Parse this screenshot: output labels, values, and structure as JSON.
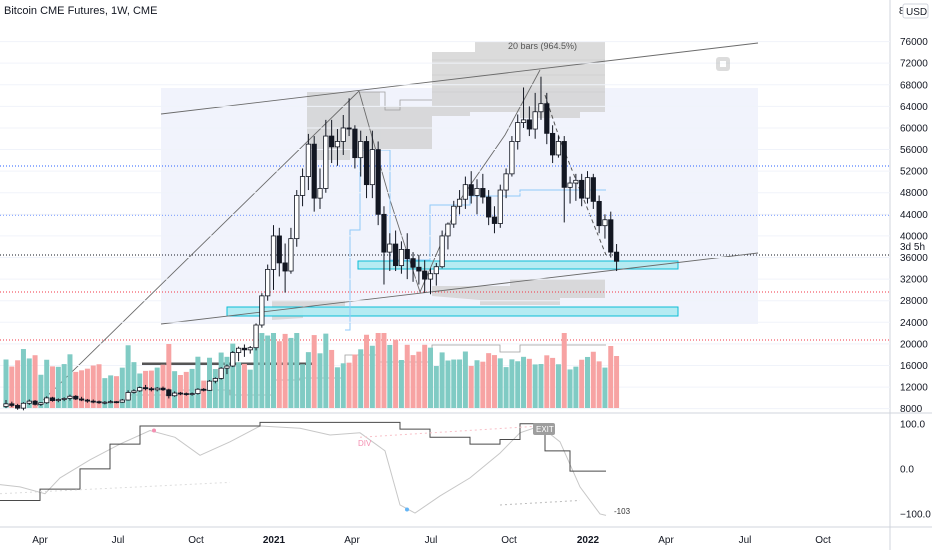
{
  "header": {
    "title": "Bitcoin CME Futures, 1W, CME",
    "currency": "USD",
    "currency_cut": "8"
  },
  "chart_data": {
    "type": "candlestick",
    "title": "Bitcoin CME Futures, 1W, CME",
    "y_ticks": [
      8000,
      12000,
      16000,
      20000,
      24000,
      28000,
      32000,
      36000,
      40000,
      44000,
      48000,
      52000,
      56000,
      60000,
      64000,
      68000,
      72000,
      76000
    ],
    "ylim": [
      7200,
      80000
    ],
    "x_tick_labels": [
      "Apr",
      "Jul",
      "Oct",
      "2021",
      "Apr",
      "Jul",
      "Oct",
      "2022",
      "Apr",
      "Jul",
      "Oct"
    ],
    "bold_x_labels": [
      "2021",
      "2022"
    ],
    "countdown_label": "3d 5h",
    "measure_label": "20 bars (964.5%)",
    "annotations": [
      "DIV",
      "EXIT"
    ],
    "oscillator": {
      "ylim": [
        -120,
        115
      ],
      "ticks": [
        100.0,
        0.0,
        -100.0
      ],
      "tick_labels": [
        "100.0",
        "0.0",
        "−100.0"
      ],
      "min_label": "-103"
    },
    "candles": [
      [
        8400,
        9600,
        8100,
        8900
      ],
      [
        8900,
        9300,
        8300,
        8600
      ],
      [
        8600,
        8900,
        7800,
        8100
      ],
      [
        8100,
        9200,
        7700,
        9000
      ],
      [
        9000,
        9700,
        8700,
        9400
      ],
      [
        9400,
        9600,
        8600,
        8800
      ],
      [
        8800,
        9200,
        8500,
        9100
      ],
      [
        9100,
        10300,
        8900,
        10000
      ],
      [
        10000,
        10200,
        9300,
        9500
      ],
      [
        9500,
        9900,
        9200,
        9700
      ],
      [
        9700,
        10100,
        9400,
        9900
      ],
      [
        9900,
        10600,
        9500,
        10300
      ],
      [
        10300,
        10500,
        9600,
        9800
      ],
      [
        9800,
        10200,
        9400,
        9600
      ],
      [
        9600,
        9800,
        9100,
        9400
      ],
      [
        9400,
        9700,
        9000,
        9300
      ],
      [
        9300,
        9500,
        8900,
        9100
      ],
      [
        9100,
        9400,
        8800,
        9200
      ],
      [
        9200,
        9600,
        9000,
        9300
      ],
      [
        9300,
        9400,
        9000,
        9200
      ],
      [
        9200,
        9800,
        9100,
        9600
      ],
      [
        9600,
        11400,
        9500,
        11000
      ],
      [
        11000,
        11600,
        10800,
        11300
      ],
      [
        11300,
        12100,
        11100,
        11900
      ],
      [
        11900,
        12400,
        11400,
        11700
      ],
      [
        11700,
        12000,
        11200,
        11500
      ],
      [
        11500,
        12000,
        11200,
        11800
      ],
      [
        11800,
        12100,
        11300,
        11500
      ],
      [
        11500,
        11700,
        9900,
        10400
      ],
      [
        10400,
        11200,
        10200,
        10900
      ],
      [
        10900,
        11100,
        10500,
        10800
      ],
      [
        10800,
        11000,
        10400,
        10700
      ],
      [
        10700,
        11000,
        10400,
        10800
      ],
      [
        10800,
        11800,
        10600,
        11600
      ],
      [
        11600,
        11800,
        11200,
        11400
      ],
      [
        11400,
        13300,
        11300,
        13100
      ],
      [
        13100,
        13800,
        12700,
        13600
      ],
      [
        13600,
        15700,
        13400,
        15500
      ],
      [
        15500,
        16200,
        14400,
        15900
      ],
      [
        15900,
        18700,
        15700,
        18400
      ],
      [
        18400,
        19500,
        16800,
        19200
      ],
      [
        19200,
        19900,
        17600,
        18900
      ],
      [
        18900,
        19600,
        18200,
        19300
      ],
      [
        19300,
        23800,
        18800,
        23500
      ],
      [
        23500,
        29400,
        23000,
        28900
      ],
      [
        28900,
        34700,
        28000,
        33800
      ],
      [
        33800,
        42000,
        30000,
        40000
      ],
      [
        40000,
        41500,
        32500,
        35000
      ],
      [
        35000,
        38600,
        29500,
        33500
      ],
      [
        33500,
        41500,
        33000,
        39500
      ],
      [
        39500,
        48500,
        38000,
        47500
      ],
      [
        47500,
        52500,
        45500,
        51000
      ],
      [
        51000,
        58900,
        48500,
        57000
      ],
      [
        57000,
        58500,
        44500,
        47000
      ],
      [
        47000,
        52500,
        45000,
        48800
      ],
      [
        48800,
        61500,
        48000,
        58500
      ],
      [
        58500,
        61500,
        53500,
        56500
      ],
      [
        56500,
        59800,
        53000,
        57500
      ],
      [
        57500,
        62400,
        55000,
        60000
      ],
      [
        60000,
        65500,
        58500,
        59800
      ],
      [
        59800,
        60500,
        52500,
        54500
      ],
      [
        54500,
        59500,
        51000,
        57500
      ],
      [
        57500,
        58500,
        47000,
        49500
      ],
      [
        49500,
        59500,
        47000,
        56000
      ],
      [
        56000,
        57500,
        42000,
        44000
      ],
      [
        44000,
        45500,
        31000,
        37000
      ],
      [
        37000,
        40500,
        33500,
        38500
      ],
      [
        38500,
        41000,
        33500,
        34500
      ],
      [
        34500,
        39000,
        33000,
        37500
      ],
      [
        37500,
        40500,
        32000,
        35800
      ],
      [
        35800,
        37000,
        31500,
        34200
      ],
      [
        34200,
        36500,
        31000,
        33500
      ],
      [
        33500,
        35500,
        29500,
        32000
      ],
      [
        32000,
        34000,
        29200,
        33000
      ],
      [
        33000,
        35000,
        30800,
        34300
      ],
      [
        34300,
        41000,
        34000,
        40000
      ],
      [
        40000,
        42500,
        37500,
        42200
      ],
      [
        42200,
        46500,
        41500,
        45500
      ],
      [
        45500,
        48500,
        44000,
        46800
      ],
      [
        46800,
        51000,
        45000,
        49500
      ],
      [
        49500,
        52000,
        46000,
        47500
      ],
      [
        47500,
        50500,
        44000,
        48800
      ],
      [
        48800,
        51500,
        46000,
        47200
      ],
      [
        47200,
        48500,
        42000,
        43500
      ],
      [
        43500,
        45500,
        40500,
        42300
      ],
      [
        42300,
        49500,
        41500,
        48500
      ],
      [
        48500,
        52500,
        47000,
        51500
      ],
      [
        51500,
        58500,
        51000,
        57500
      ],
      [
        57500,
        62500,
        56000,
        61000
      ],
      [
        61000,
        67500,
        60000,
        61500
      ],
      [
        61500,
        64000,
        58500,
        59800
      ],
      [
        59800,
        66500,
        58000,
        63000
      ],
      [
        63000,
        69500,
        61500,
        64500
      ],
      [
        64500,
        66500,
        57000,
        59000
      ],
      [
        59000,
        60500,
        53500,
        55000
      ],
      [
        55000,
        58500,
        54500,
        57500
      ],
      [
        57500,
        58500,
        42500,
        49000
      ],
      [
        49000,
        51000,
        46000,
        49800
      ],
      [
        49800,
        51500,
        46500,
        50300
      ],
      [
        50300,
        51500,
        45500,
        47000
      ],
      [
        47000,
        52000,
        46000,
        50800
      ],
      [
        50800,
        51500,
        45000,
        46400
      ],
      [
        46400,
        47500,
        40500,
        41900
      ],
      [
        41900,
        44000,
        39500,
        43000
      ],
      [
        43000,
        44500,
        36000,
        37000
      ],
      [
        37000,
        38500,
        33500,
        35300
      ]
    ]
  }
}
